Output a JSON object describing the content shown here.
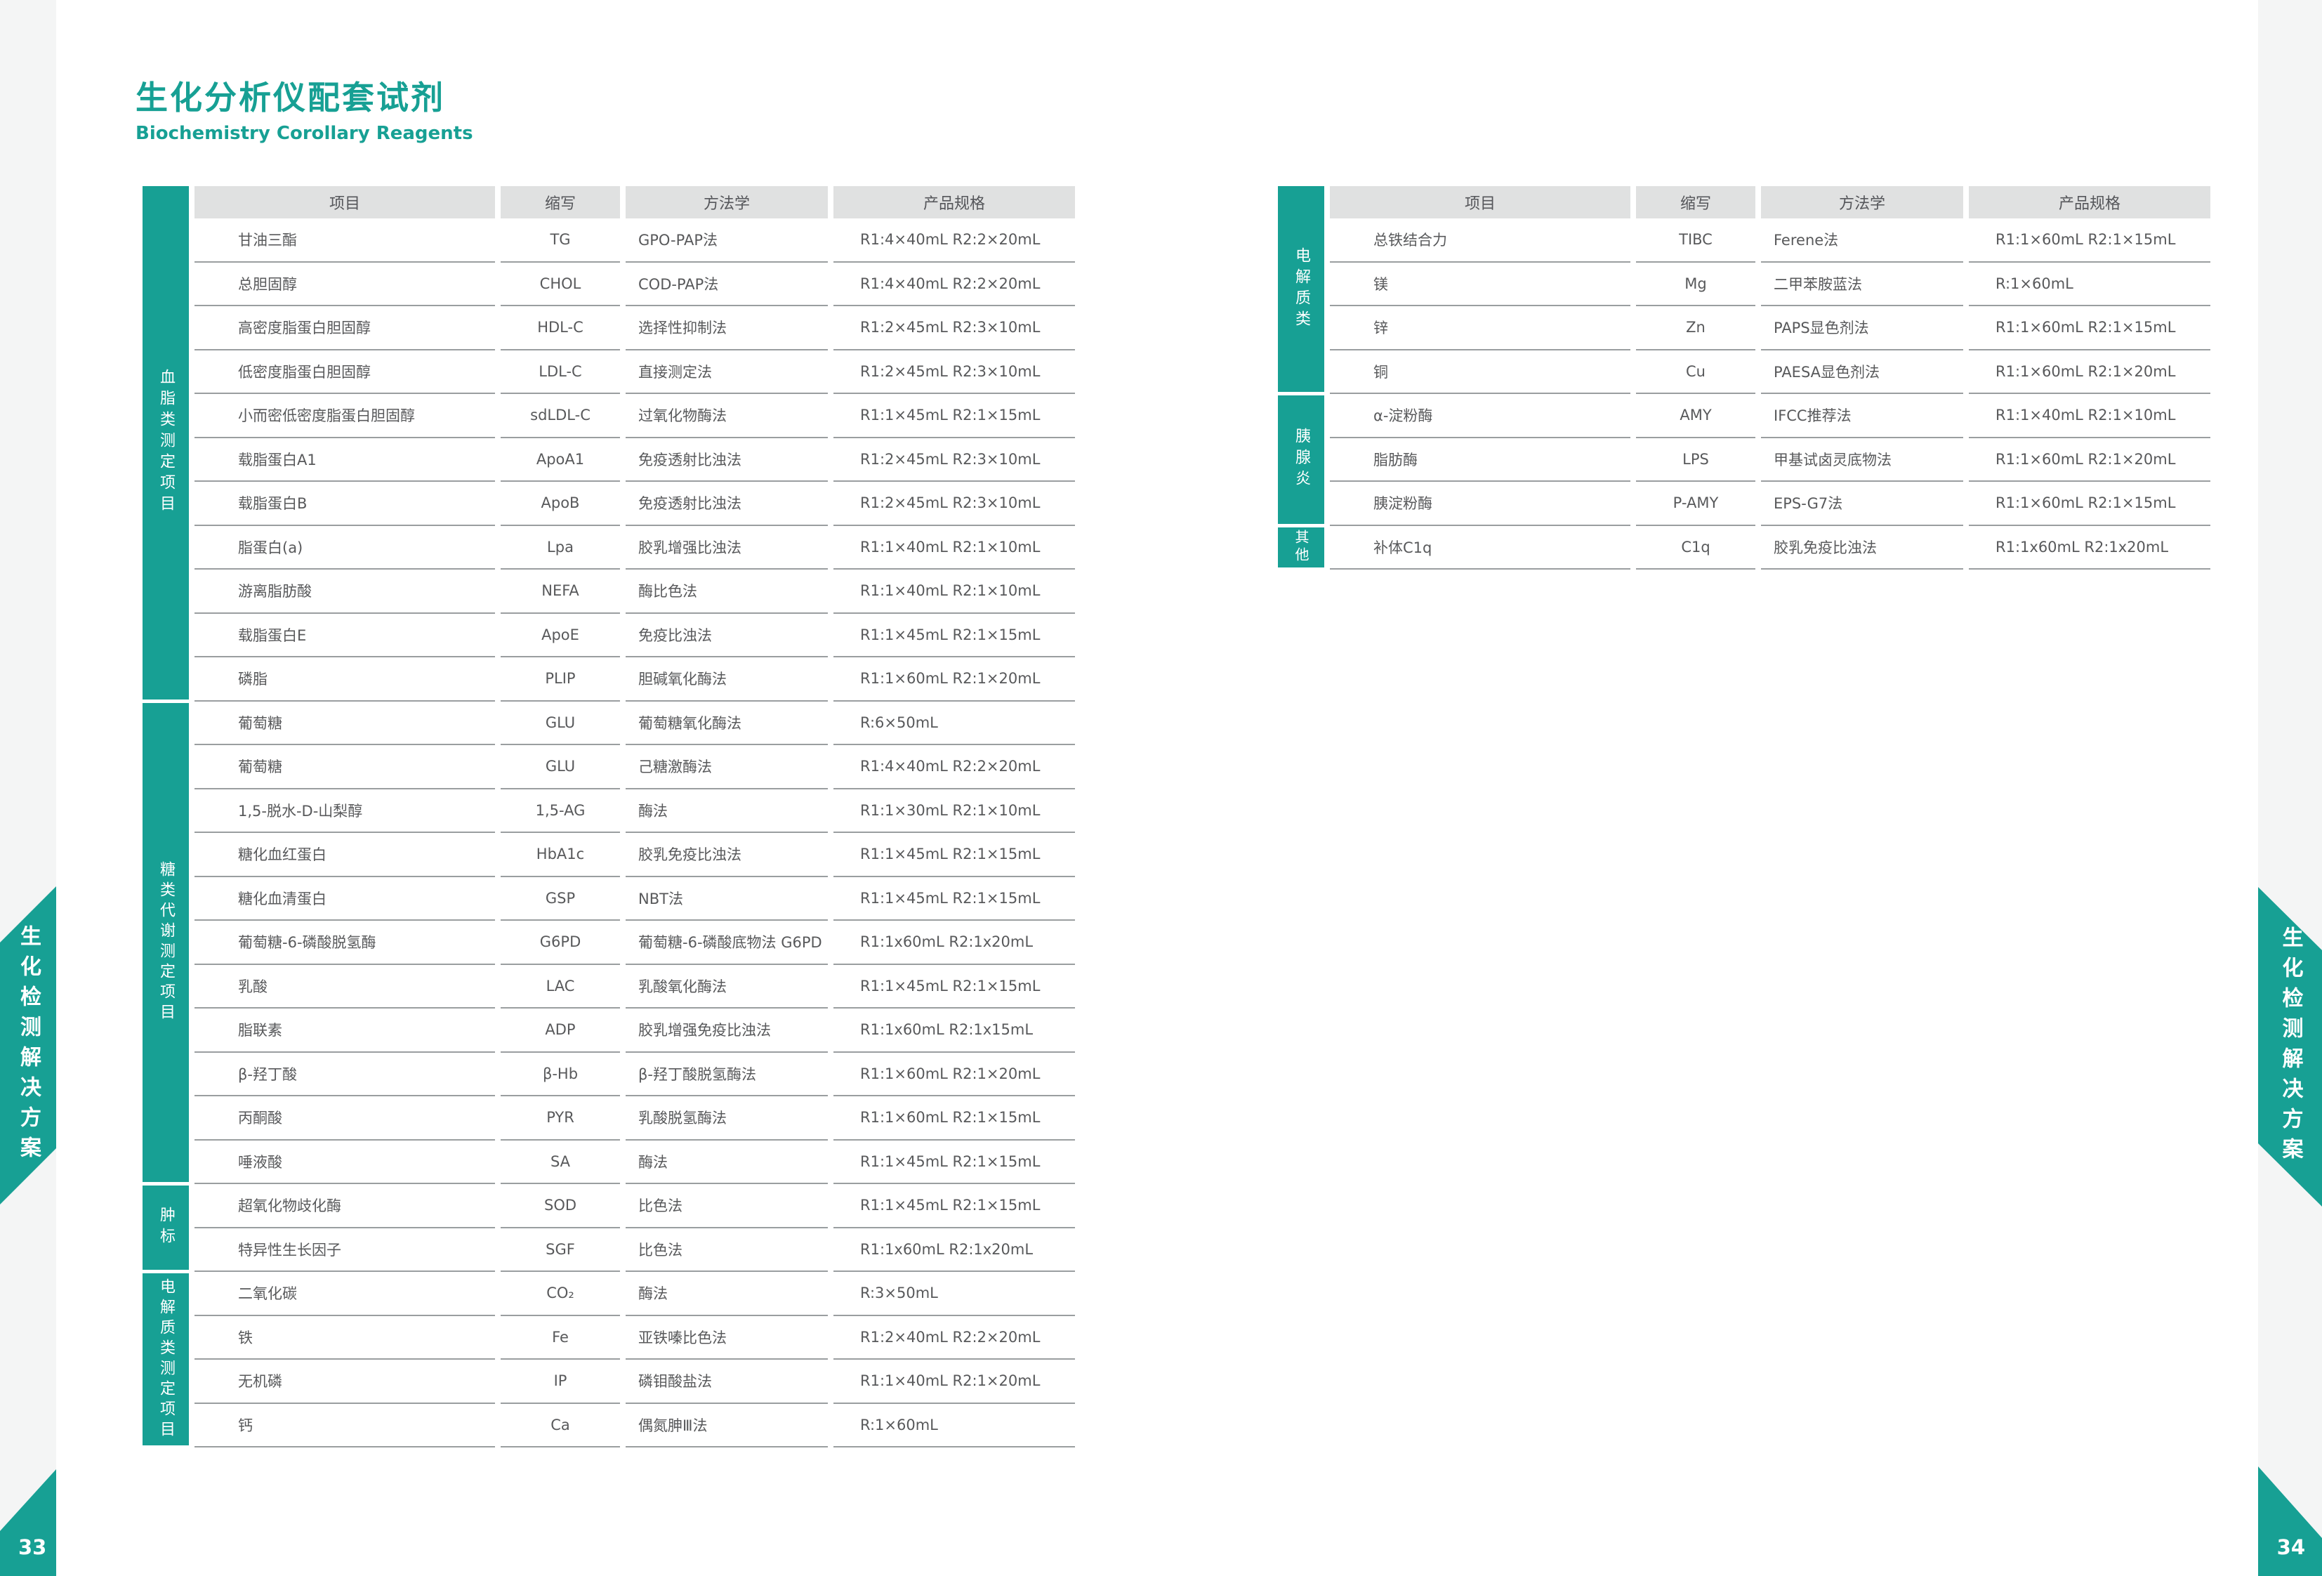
{
  "page": {
    "title": "生化分析仪配套试剂",
    "subtitle": "Biochemistry Corollary Reagents",
    "side_ribbon_text": "生化检测解决方案",
    "left_page_number": "33",
    "right_page_number": "34",
    "colors": {
      "teal_accent": "#17A094",
      "header_band_gray": "#E0E1E1",
      "body_text": "#58595B",
      "divider_gray": "#9A9EA0",
      "margin_strip_gray": "#F4F5F5"
    }
  },
  "table_headers": [
    "项目",
    "缩写",
    "方法学",
    "产品规格"
  ],
  "left_table": {
    "categories": [
      {
        "label": "血脂类测定项目",
        "rows": 11
      },
      {
        "label": "糖类代谢测定项目",
        "rows": 11
      },
      {
        "label": "肿标",
        "rows": 2
      },
      {
        "label": "电解质类测定项目",
        "rows": 4
      }
    ],
    "rows": [
      {
        "item": "甘油三酯",
        "abbr": "TG",
        "method": "GPO-PAP法",
        "spec": "R1:4×40mL R2:2×20mL"
      },
      {
        "item": "总胆固醇",
        "abbr": "CHOL",
        "method": "COD-PAP法",
        "spec": "R1:4×40mL R2:2×20mL"
      },
      {
        "item": "高密度脂蛋白胆固醇",
        "abbr": "HDL-C",
        "method": "选择性抑制法",
        "spec": "R1:2×45mL R2:3×10mL"
      },
      {
        "item": "低密度脂蛋白胆固醇",
        "abbr": "LDL-C",
        "method": "直接测定法",
        "spec": "R1:2×45mL R2:3×10mL"
      },
      {
        "item": "小而密低密度脂蛋白胆固醇",
        "abbr": "sdLDL-C",
        "method": "过氧化物酶法",
        "spec": "R1:1×45mL R2:1×15mL"
      },
      {
        "item": "载脂蛋白A1",
        "abbr": "ApoA1",
        "method": "免疫透射比浊法",
        "spec": "R1:2×45mL R2:3×10mL"
      },
      {
        "item": "载脂蛋白B",
        "abbr": "ApoB",
        "method": "免疫透射比浊法",
        "spec": "R1:2×45mL R2:3×10mL"
      },
      {
        "item": "脂蛋白(a)",
        "abbr": "Lpa",
        "method": "胶乳增强比浊法",
        "spec": "R1:1×40mL R2:1×10mL"
      },
      {
        "item": "游离脂肪酸",
        "abbr": "NEFA",
        "method": "酶比色法",
        "spec": "R1:1×40mL  R2:1×10mL"
      },
      {
        "item": "载脂蛋白E",
        "abbr": "ApoE",
        "method": "免疫比浊法",
        "spec": "R1:1×45mL R2:1×15mL"
      },
      {
        "item": "磷脂",
        "abbr": "PLIP",
        "method": "胆碱氧化酶法",
        "spec": "R1:1×60mL R2:1×20mL"
      },
      {
        "item": "葡萄糖",
        "abbr": "GLU",
        "method": "葡萄糖氧化酶法",
        "spec": "R:6×50mL"
      },
      {
        "item": "葡萄糖",
        "abbr": "GLU",
        "method": "己糖激酶法",
        "spec": "R1:4×40mL R2:2×20mL"
      },
      {
        "item": "1,5-脱水-D-山梨醇",
        "abbr": "1,5-AG",
        "method": "酶法",
        "spec": "R1:1×30mL R2:1×10mL"
      },
      {
        "item": "糖化血红蛋白",
        "abbr": "HbA1c",
        "method": "胶乳免疫比浊法",
        "spec": "R1:1×45mL R2:1×15mL"
      },
      {
        "item": "糖化血清蛋白",
        "abbr": "GSP",
        "method": "NBT法",
        "spec": "R1:1×45mL R2:1×15mL"
      },
      {
        "item": "葡萄糖-6-磷酸脱氢酶",
        "abbr": "G6PD",
        "method": "葡萄糖-6-磷酸底物法 G6PD",
        "spec": "R1:1x60mL R2:1x20mL"
      },
      {
        "item": "乳酸",
        "abbr": "LAC",
        "method": "乳酸氧化酶法",
        "spec": "R1:1×45mL R2:1×15mL"
      },
      {
        "item": "脂联素",
        "abbr": "ADP",
        "method": "胶乳增强免疫比浊法",
        "spec": "R1:1x60mL R2:1x15mL"
      },
      {
        "item": "β-羟丁酸",
        "abbr": "β-Hb",
        "method": "β-羟丁酸脱氢酶法",
        "spec": "R1:1×60mL R2:1×20mL"
      },
      {
        "item": "丙酮酸",
        "abbr": "PYR",
        "method": "乳酸脱氢酶法",
        "spec": "R1:1×60mL R2:1×15mL"
      },
      {
        "item": "唾液酸",
        "abbr": "SA",
        "method": "酶法",
        "spec": "R1:1×45mL  R2:1×15mL"
      },
      {
        "item": "超氧化物歧化酶",
        "abbr": "SOD",
        "method": "比色法",
        "spec": "R1:1×45mL R2:1×15mL"
      },
      {
        "item": "特异性生长因子",
        "abbr": "SGF",
        "method": "比色法",
        "spec": "R1:1x60mL R2:1x20mL"
      },
      {
        "item": "二氧化碳",
        "abbr": "CO₂",
        "method": "酶法",
        "spec": "R:3×50mL"
      },
      {
        "item": "铁",
        "abbr": "Fe",
        "method": "亚铁嗪比色法",
        "spec": "R1:2×40mL R2:2×20mL"
      },
      {
        "item": "无机磷",
        "abbr": "IP",
        "method": "磷钼酸盐法",
        "spec": "R1:1×40mL R2:1×20mL"
      },
      {
        "item": "钙",
        "abbr": "Ca",
        "method": "偶氮胂Ⅲ法",
        "spec": "R:1×60mL"
      }
    ]
  },
  "right_table": {
    "categories": [
      {
        "label": "电解质类",
        "rows": 4
      },
      {
        "label": "胰腺炎",
        "rows": 3
      },
      {
        "label": "其他",
        "rows": 1
      }
    ],
    "rows": [
      {
        "item": "总铁结合力",
        "abbr": "TIBC",
        "method": "Ferene法",
        "spec": "R1:1×60mL R2:1×15mL"
      },
      {
        "item": "镁",
        "abbr": "Mg",
        "method": "二甲苯胺蓝法",
        "spec": "R:1×60mL"
      },
      {
        "item": "锌",
        "abbr": "Zn",
        "method": "PAPS显色剂法",
        "spec": "R1:1×60mL R2:1×15mL"
      },
      {
        "item": "铜",
        "abbr": "Cu",
        "method": "PAESA显色剂法",
        "spec": "R1:1×60mL R2:1×20mL"
      },
      {
        "item": "α-淀粉酶",
        "abbr": "AMY",
        "method": "IFCC推荐法",
        "spec": "R1:1×40mL R2:1×10mL"
      },
      {
        "item": "脂肪酶",
        "abbr": "LPS",
        "method": "甲基试卤灵底物法",
        "spec": "R1:1×60mL R2:1×20mL"
      },
      {
        "item": "胰淀粉酶",
        "abbr": "P-AMY",
        "method": "EPS-G7法",
        "spec": "R1:1×60mL R2:1×15mL"
      },
      {
        "item": "补体C1q",
        "abbr": "C1q",
        "method": "胶乳免疫比浊法",
        "spec": "R1:1x60mL R2:1x20mL"
      }
    ]
  }
}
